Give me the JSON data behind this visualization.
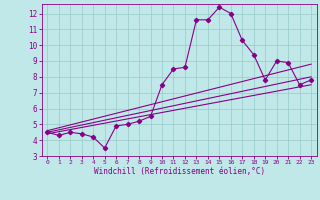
{
  "xlabel": "Windchill (Refroidissement éolien,°C)",
  "xlim": [
    -0.5,
    23.5
  ],
  "ylim": [
    3,
    12.6
  ],
  "xticks": [
    0,
    1,
    2,
    3,
    4,
    5,
    6,
    7,
    8,
    9,
    10,
    11,
    12,
    13,
    14,
    15,
    16,
    17,
    18,
    19,
    20,
    21,
    22,
    23
  ],
  "yticks": [
    3,
    4,
    5,
    6,
    7,
    8,
    9,
    10,
    11,
    12
  ],
  "bg_color": "#c0e8e8",
  "line_color": "#880088",
  "grid_color": "#98c8c8",
  "line1_x": [
    0,
    1,
    2,
    3,
    4,
    5,
    6,
    7,
    8,
    9,
    10,
    11,
    12,
    13,
    14,
    15,
    16,
    17,
    18,
    19,
    20,
    21,
    22,
    23
  ],
  "line1_y": [
    4.5,
    4.3,
    4.5,
    4.4,
    4.2,
    3.5,
    4.9,
    5.0,
    5.2,
    5.5,
    7.5,
    8.5,
    8.6,
    11.6,
    11.6,
    12.4,
    12.0,
    10.3,
    9.4,
    7.8,
    9.0,
    8.9,
    7.5,
    7.8
  ],
  "line2_x": [
    0,
    23
  ],
  "line2_y": [
    4.4,
    7.5
  ],
  "line3_x": [
    0,
    23
  ],
  "line3_y": [
    4.5,
    8.0
  ],
  "line4_x": [
    0,
    23
  ],
  "line4_y": [
    4.6,
    8.8
  ],
  "tick_fontsize": 5,
  "xlabel_fontsize": 5.5
}
